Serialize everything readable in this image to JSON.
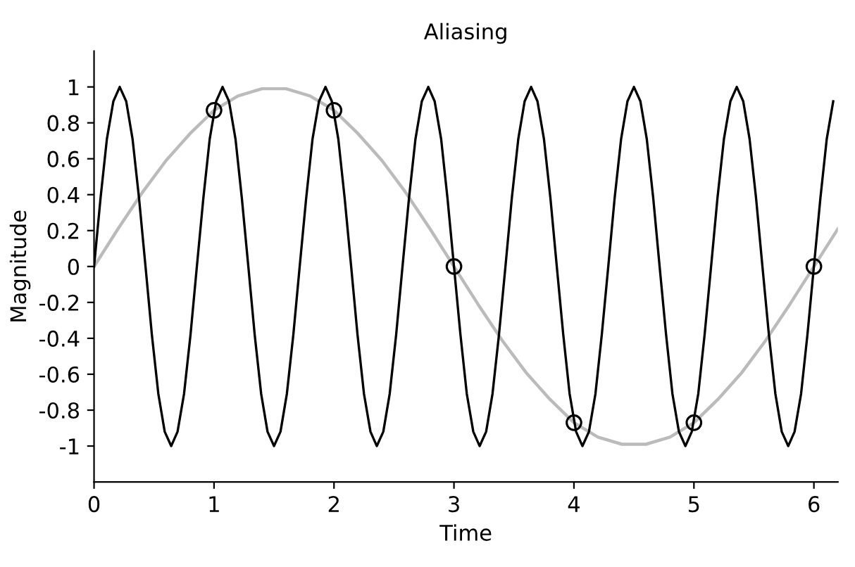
{
  "chart_data": {
    "type": "line",
    "title": "Aliasing",
    "xlabel": "Time",
    "ylabel": "Magnitude",
    "xlim": [
      0,
      6.2
    ],
    "ylim": [
      -1.2,
      1.2
    ],
    "xticks": [
      0,
      1,
      2,
      3,
      4,
      5,
      6
    ],
    "yticks": [
      -1,
      -0.8,
      -0.6,
      -0.4,
      -0.2,
      0,
      0.2,
      0.4,
      0.6,
      0.8,
      1
    ],
    "grid": false,
    "legend": false,
    "series": [
      {
        "color": "#bbbbbb",
        "marker": "none",
        "x": [
          0,
          0.2,
          0.4,
          0.6,
          0.8,
          1.0,
          1.2,
          1.4,
          1.6,
          1.8,
          2.0,
          2.2,
          2.4,
          2.6,
          2.8,
          3.0,
          3.2,
          3.4,
          3.6,
          3.8,
          4.0,
          4.2,
          4.4,
          4.6,
          4.8,
          5.0,
          5.2,
          5.4,
          5.6,
          5.8,
          6.0,
          6.2
        ],
        "values": [
          0,
          0.21,
          0.41,
          0.59,
          0.74,
          0.87,
          0.95,
          0.99,
          0.99,
          0.95,
          0.87,
          0.74,
          0.59,
          0.41,
          0.21,
          0,
          -0.21,
          -0.41,
          -0.59,
          -0.74,
          -0.87,
          -0.95,
          -0.99,
          -0.99,
          -0.95,
          -0.87,
          -0.74,
          -0.59,
          -0.41,
          -0.21,
          0,
          0.21
        ]
      },
      {
        "color": "#000000",
        "marker": "none",
        "x": [
          0,
          0.054,
          0.107,
          0.161,
          0.214,
          0.268,
          0.321,
          0.375,
          0.429,
          0.482,
          0.536,
          0.589,
          0.643,
          0.696,
          0.75,
          0.804,
          0.857,
          0.911,
          0.964,
          1.018,
          1.071,
          1.125,
          1.179,
          1.232,
          1.286,
          1.339,
          1.393,
          1.446,
          1.5,
          1.554,
          1.607,
          1.661,
          1.714,
          1.768,
          1.821,
          1.875,
          1.929,
          1.982,
          2.036,
          2.089,
          2.143,
          2.196,
          2.25,
          2.304,
          2.357,
          2.411,
          2.464,
          2.518,
          2.571,
          2.625,
          2.679,
          2.732,
          2.786,
          2.839,
          2.893,
          2.946,
          3.0,
          3.054,
          3.107,
          3.161,
          3.214,
          3.268,
          3.321,
          3.375,
          3.429,
          3.482,
          3.536,
          3.589,
          3.643,
          3.696,
          3.75,
          3.804,
          3.857,
          3.911,
          3.964,
          4.018,
          4.071,
          4.125,
          4.179,
          4.232,
          4.286,
          4.339,
          4.393,
          4.446,
          4.5,
          4.554,
          4.607,
          4.661,
          4.714,
          4.768,
          4.821,
          4.875,
          4.929,
          4.982,
          5.036,
          5.089,
          5.143,
          5.196,
          5.25,
          5.304,
          5.357,
          5.411,
          5.464,
          5.518,
          5.571,
          5.625,
          5.679,
          5.732,
          5.786,
          5.839,
          5.893,
          5.946,
          6.0,
          6.054,
          6.107,
          6.161
        ],
        "values": [
          0,
          0.38,
          0.71,
          0.92,
          1,
          0.92,
          0.71,
          0.38,
          0,
          -0.38,
          -0.71,
          -0.92,
          -1,
          -0.92,
          -0.71,
          -0.38,
          0,
          0.38,
          0.71,
          0.92,
          1,
          0.92,
          0.71,
          0.38,
          0,
          -0.38,
          -0.71,
          -0.92,
          -1,
          -0.92,
          -0.71,
          -0.38,
          0,
          0.38,
          0.71,
          0.92,
          1,
          0.92,
          0.71,
          0.38,
          0,
          -0.38,
          -0.71,
          -0.92,
          -1,
          -0.92,
          -0.71,
          -0.38,
          0,
          0.38,
          0.71,
          0.92,
          1,
          0.92,
          0.71,
          0.38,
          0,
          -0.38,
          -0.71,
          -0.92,
          -1,
          -0.92,
          -0.71,
          -0.38,
          0,
          0.38,
          0.71,
          0.92,
          1,
          0.92,
          0.71,
          0.38,
          0,
          -0.38,
          -0.71,
          -0.92,
          -1,
          -0.92,
          -0.71,
          -0.38,
          0,
          0.38,
          0.71,
          0.92,
          1,
          0.92,
          0.71,
          0.38,
          0,
          -0.38,
          -0.71,
          -0.92,
          -1,
          -0.92,
          -0.71,
          -0.38,
          0,
          0.38,
          0.71,
          0.92,
          1,
          0.92,
          0.71,
          0.38,
          0,
          -0.38,
          -0.71,
          -0.92,
          -1,
          -0.92,
          -0.71,
          -0.38,
          0,
          0.38,
          0.71,
          0.92
        ]
      },
      {
        "type": "scatter",
        "color": "#000000",
        "marker": "circle",
        "x": [
          1,
          2,
          3,
          4,
          5,
          6
        ],
        "values": [
          0.87,
          0.87,
          0,
          -0.87,
          -0.87,
          0
        ]
      }
    ]
  }
}
